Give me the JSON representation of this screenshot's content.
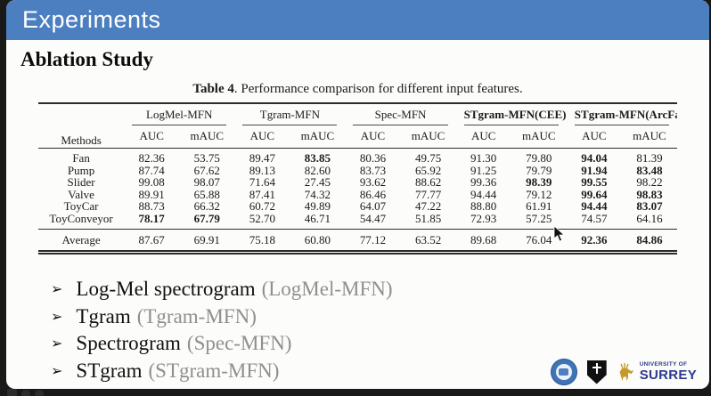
{
  "header": {
    "title": "Experiments",
    "bg_color": "#4c7fbf",
    "text_color": "#ffffff"
  },
  "section_title": "Ablation Study",
  "table_caption": {
    "label": "Table 4",
    "text": ". Performance comparison for different input features."
  },
  "table": {
    "methods_header": "Methods",
    "subheaders": [
      "AUC",
      "mAUC"
    ],
    "groups": [
      {
        "label": "LogMel-MFN",
        "bold": false
      },
      {
        "label": "Tgram-MFN",
        "bold": false
      },
      {
        "label": "Spec-MFN",
        "bold": false
      },
      {
        "label": "STgram-MFN(CEE)",
        "bold": true
      },
      {
        "label": "STgram-MFN(ArcFace)",
        "bold": true
      }
    ],
    "rows": [
      {
        "method": "Fan",
        "values": [
          "82.36",
          "53.75",
          "89.47",
          "83.85",
          "80.36",
          "49.75",
          "91.30",
          "79.80",
          "94.04",
          "81.39"
        ],
        "bold_cols": [
          3,
          8
        ]
      },
      {
        "method": "Pump",
        "values": [
          "87.74",
          "67.62",
          "89.13",
          "82.60",
          "83.73",
          "65.92",
          "91.25",
          "79.79",
          "91.94",
          "83.48"
        ],
        "bold_cols": [
          8,
          9
        ]
      },
      {
        "method": "Slider",
        "values": [
          "99.08",
          "98.07",
          "71.64",
          "27.45",
          "93.62",
          "88.62",
          "99.36",
          "98.39",
          "99.55",
          "98.22"
        ],
        "bold_cols": [
          7,
          8
        ]
      },
      {
        "method": "Valve",
        "values": [
          "89.91",
          "65.88",
          "87.41",
          "74.32",
          "86.46",
          "77.77",
          "94.44",
          "79.12",
          "99.64",
          "98.83"
        ],
        "bold_cols": [
          8,
          9
        ]
      },
      {
        "method": "ToyCar",
        "values": [
          "88.73",
          "66.32",
          "60.72",
          "49.89",
          "64.07",
          "47.22",
          "88.80",
          "61.91",
          "94.44",
          "83.07"
        ],
        "bold_cols": [
          8,
          9
        ]
      },
      {
        "method": "ToyConveyor",
        "values": [
          "78.17",
          "67.79",
          "52.70",
          "46.71",
          "54.47",
          "51.85",
          "72.93",
          "57.25",
          "74.57",
          "64.16"
        ],
        "bold_cols": [
          0,
          1
        ]
      }
    ],
    "average_row": {
      "method": "Average",
      "values": [
        "87.67",
        "69.91",
        "75.18",
        "60.80",
        "77.12",
        "63.52",
        "89.68",
        "76.04",
        "92.36",
        "84.86"
      ],
      "bold_cols": [
        8,
        9
      ]
    }
  },
  "bullets": [
    {
      "main": "Log-Mel spectrogram",
      "paren": "(LogMel-MFN)"
    },
    {
      "main": "Tgram",
      "paren": "(Tgram-MFN)"
    },
    {
      "main": "Spectrogram",
      "paren": "(Spec-MFN)"
    },
    {
      "main": "STgram",
      "paren": "(STgram-MFN)"
    }
  ],
  "icons": {
    "bullet_arrow": "➢"
  },
  "logos": {
    "surrey": {
      "line1": "UNIVERSITY OF",
      "line2": "SURREY",
      "text_color": "#2b3a8f",
      "stag_color": "#c49a2c"
    }
  }
}
